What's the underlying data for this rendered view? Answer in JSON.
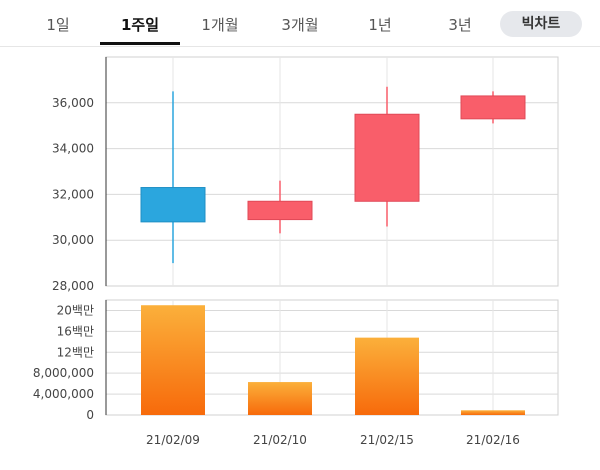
{
  "tabs": [
    {
      "label": "1일",
      "active": false
    },
    {
      "label": "1주일",
      "active": true
    },
    {
      "label": "1개월",
      "active": false
    },
    {
      "label": "3개월",
      "active": false
    },
    {
      "label": "1년",
      "active": false
    },
    {
      "label": "3년",
      "active": false
    }
  ],
  "chart_toggle_label": "빅차트",
  "colors": {
    "up": "#f95e6a",
    "down": "#2ba6de",
    "volume_top": "#fbb03b",
    "volume_bottom": "#f76a0b"
  },
  "chart_data": [
    {
      "type": "candlestick",
      "title": "",
      "categories": [
        "21/02/09",
        "21/02/10",
        "21/02/15",
        "21/02/16"
      ],
      "open": [
        32300,
        30900,
        31700,
        35300
      ],
      "high": [
        36500,
        32600,
        36700,
        36500
      ],
      "low": [
        29000,
        30300,
        30600,
        35100
      ],
      "close": [
        30800,
        31700,
        35500,
        36300
      ],
      "ylim": [
        28000,
        38000
      ],
      "yticks": [
        28000,
        30000,
        32000,
        34000,
        36000
      ],
      "ytick_labels": [
        "28,000",
        "30,000",
        "32,000",
        "34,000",
        "36,000"
      ],
      "grid": true
    },
    {
      "type": "bar",
      "title": "",
      "categories": [
        "21/02/09",
        "21/02/10",
        "21/02/15",
        "21/02/16"
      ],
      "values": [
        21000000,
        6300000,
        14800000,
        900000
      ],
      "ylim": [
        0,
        22000000
      ],
      "yticks": [
        0,
        4000000,
        8000000,
        12000000,
        16000000,
        20000000
      ],
      "ytick_labels": [
        "0",
        "4,000,000",
        "8,000,000",
        "12백만",
        "16백만",
        "20백만"
      ],
      "grid": true
    }
  ]
}
